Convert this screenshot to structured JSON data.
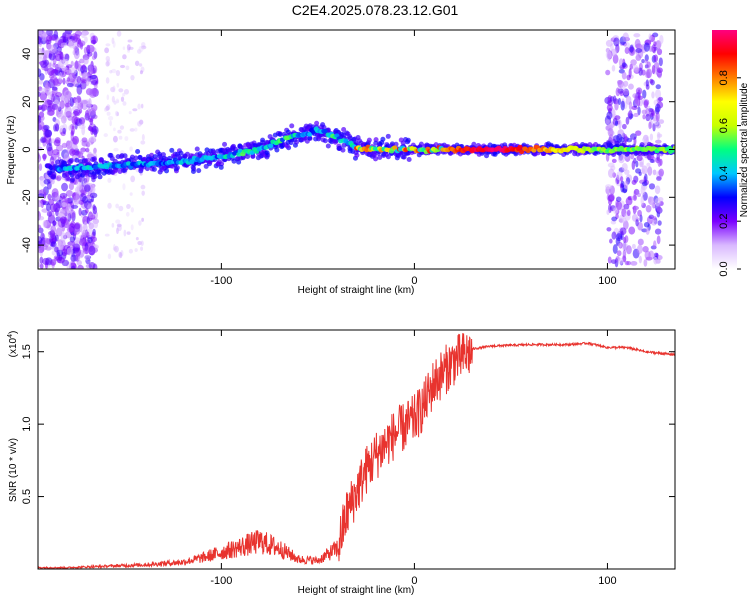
{
  "title": "C2E4.2025.078.23.12.G01",
  "chart_data": [
    {
      "type": "heatmap",
      "xlabel": "Height of straight line (km)",
      "ylabel": "Frequency (Hz)",
      "xlim": [
        -195,
        135
      ],
      "ylim": [
        -50,
        50
      ],
      "xticks": [
        -100,
        0,
        100
      ],
      "yticks": [
        -40,
        -20,
        0,
        20,
        40
      ],
      "colorbar": {
        "label": "Normalized spectral amplitude",
        "range": [
          0,
          1
        ],
        "ticks": [
          0.0,
          0.2,
          0.4,
          0.6,
          0.8
        ],
        "tick_labels": [
          "0.0",
          "0.2",
          "0.4",
          "0.6",
          "0.8"
        ],
        "colors": [
          "#ffffff",
          "#d9b8ff",
          "#7a00ff",
          "#0000ff",
          "#00c8ff",
          "#00ff80",
          "#c8ff00",
          "#ffff00",
          "#ff8000",
          "#ff0000",
          "#ff007f"
        ]
      },
      "ridge": {
        "x": [
          -180,
          -160,
          -140,
          -120,
          -100,
          -80,
          -65,
          -50,
          -40,
          -30,
          -20,
          -10,
          0,
          20,
          50,
          80,
          100,
          120,
          135
        ],
        "frequency": [
          -8,
          -7,
          -6,
          -5,
          -3,
          0,
          5,
          8,
          5,
          1,
          0,
          0,
          0,
          0,
          0,
          0,
          0,
          0,
          0
        ]
      }
    },
    {
      "type": "line",
      "xlabel": "Height of straight line (km)",
      "ylabel": "SNR (10 * v/v)",
      "y_multiplier": "(x10",
      "y_multiplier_exp": "4",
      "y_multiplier_close": ")",
      "xlim": [
        -195,
        135
      ],
      "ylim": [
        0,
        1.65
      ],
      "xticks": [
        -100,
        0,
        100
      ],
      "yticks": [
        0.5,
        1.0,
        1.5
      ],
      "ytick_labels": [
        "0.5",
        "1.0",
        "1.5"
      ],
      "color": "#e8332e",
      "series": [
        {
          "x": [
            -195,
            -180,
            -160,
            -140,
            -120,
            -110,
            -100,
            -90,
            -80,
            -70,
            -60,
            -50,
            -40,
            -35,
            -30,
            -25,
            -20,
            -15,
            -10,
            -5,
            0,
            5,
            10,
            20,
            30,
            40,
            60,
            80,
            90,
            100,
            110,
            120,
            135
          ],
          "values": [
            0.01,
            0.01,
            0.02,
            0.03,
            0.05,
            0.08,
            0.12,
            0.16,
            0.2,
            0.15,
            0.07,
            0.06,
            0.15,
            0.4,
            0.55,
            0.7,
            0.8,
            0.88,
            0.95,
            1.0,
            1.05,
            1.15,
            1.3,
            1.45,
            1.52,
            1.54,
            1.55,
            1.55,
            1.56,
            1.53,
            1.53,
            1.5,
            1.48
          ]
        }
      ]
    }
  ]
}
